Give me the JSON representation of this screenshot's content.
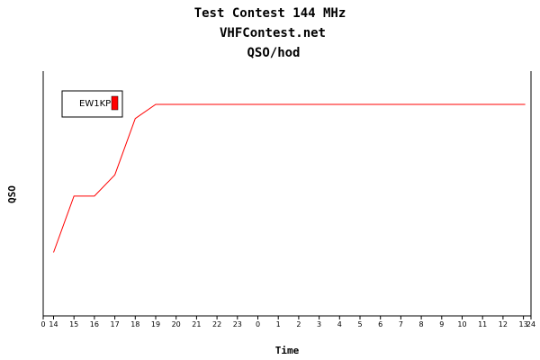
{
  "chart_data": {
    "type": "line",
    "title": "Test Contest 144 MHz",
    "subtitle": "VHFContest.net",
    "subtitle2": "QSO/hod",
    "xlabel": "Time",
    "ylabel": "QSO",
    "x_tick_labels": [
      "0",
      "14",
      "15",
      "16",
      "17",
      "18",
      "19",
      "20",
      "21",
      "22",
      "23",
      "0",
      "1",
      "2",
      "3",
      "4",
      "5",
      "6",
      "7",
      "8",
      "9",
      "10",
      "11",
      "12",
      "13",
      "24"
    ],
    "legend_placement": "top-left",
    "grid": false,
    "series": [
      {
        "name": "EW1KP",
        "color": "#ff0000",
        "x": [
          "14",
          "15",
          "16",
          "17",
          "18",
          "19",
          "20",
          "21",
          "22",
          "23",
          "0",
          "1",
          "2",
          "3",
          "4",
          "5",
          "6",
          "7",
          "8",
          "9",
          "10",
          "11",
          "12",
          "13"
        ],
        "values": [
          0.27,
          0.51,
          0.51,
          0.6,
          0.84,
          0.9,
          0.9,
          0.9,
          0.9,
          0.9,
          0.9,
          0.9,
          0.9,
          0.9,
          0.9,
          0.9,
          0.9,
          0.9,
          0.9,
          0.9,
          0.9,
          0.9,
          0.9,
          0.9
        ]
      }
    ]
  }
}
